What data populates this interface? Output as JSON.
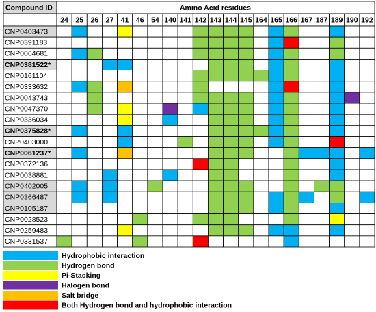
{
  "table": {
    "header": {
      "compound": "Compound ID",
      "group": "Amino Acid residues"
    },
    "residues": [
      24,
      25,
      26,
      27,
      41,
      46,
      54,
      140,
      141,
      142,
      143,
      144,
      145,
      164,
      165,
      166,
      167,
      187,
      189,
      190,
      192
    ],
    "rows": [
      {
        "id": "CNP0403473",
        "shaded": true,
        "bold": false,
        "cells": [
          null,
          "#00b0f0",
          null,
          null,
          "#ffff00",
          null,
          null,
          null,
          null,
          "#92d050",
          "#92d050",
          "#92d050",
          "#92d050",
          null,
          "#00b0f0",
          "#92d050",
          null,
          null,
          "#00b0f0",
          null,
          null
        ]
      },
      {
        "id": "CNP0391183",
        "shaded": false,
        "bold": false,
        "cells": [
          null,
          null,
          null,
          null,
          null,
          null,
          null,
          null,
          null,
          "#92d050",
          "#92d050",
          "#92d050",
          "#92d050",
          null,
          "#00b0f0",
          "#ff0000",
          null,
          null,
          "#92d050",
          null,
          null
        ]
      },
      {
        "id": "CNP0064681",
        "shaded": false,
        "bold": false,
        "cells": [
          null,
          "#00b0f0",
          "#92d050",
          null,
          null,
          null,
          null,
          null,
          null,
          "#92d050",
          "#92d050",
          "#92d050",
          "#92d050",
          null,
          "#00b0f0",
          "#92d050",
          null,
          null,
          "#92d050",
          null,
          null
        ]
      },
      {
        "id": "CNP0381522*",
        "shaded": true,
        "bold": true,
        "cells": [
          null,
          null,
          null,
          "#00b0f0",
          "#00b0f0",
          null,
          null,
          null,
          null,
          null,
          "#92d050",
          "#92d050",
          "#92d050",
          null,
          "#00b0f0",
          "#92d050",
          null,
          null,
          "#00b0f0",
          null,
          null
        ]
      },
      {
        "id": "CNP0161104",
        "shaded": false,
        "bold": false,
        "cells": [
          null,
          null,
          null,
          null,
          null,
          null,
          null,
          null,
          null,
          "#92d050",
          "#92d050",
          "#92d050",
          "#92d050",
          "#92d050",
          "#00b0f0",
          "#92d050",
          null,
          null,
          "#00b0f0",
          null,
          null
        ]
      },
      {
        "id": "CNP0333632",
        "shaded": false,
        "bold": false,
        "cells": [
          null,
          "#00b0f0",
          "#92d050",
          null,
          "#ffc000",
          null,
          null,
          null,
          null,
          "#92d050",
          null,
          null,
          null,
          null,
          "#00b0f0",
          "#ff0000",
          null,
          null,
          "#00b0f0",
          null,
          null
        ]
      },
      {
        "id": "CNP0043743",
        "shaded": false,
        "bold": false,
        "cells": [
          null,
          null,
          "#92d050",
          null,
          null,
          null,
          null,
          null,
          null,
          "#92d050",
          "#92d050",
          "#92d050",
          "#92d050",
          null,
          "#00b0f0",
          "#92d050",
          null,
          null,
          "#00b0f0",
          "#7030a0",
          null
        ]
      },
      {
        "id": "CNP0047370",
        "shaded": false,
        "bold": false,
        "cells": [
          null,
          null,
          "#92d050",
          null,
          "#ffff00",
          null,
          null,
          "#7030a0",
          null,
          "#00b0f0",
          "#92d050",
          "#92d050",
          "#92d050",
          null,
          "#00b0f0",
          "#92d050",
          null,
          null,
          "#00b0f0",
          null,
          null
        ]
      },
      {
        "id": "CNP0336034",
        "shaded": false,
        "bold": false,
        "cells": [
          null,
          null,
          null,
          null,
          "#ffff00",
          null,
          null,
          "#00b0f0",
          null,
          null,
          "#92d050",
          "#92d050",
          "#92d050",
          null,
          "#00b0f0",
          "#92d050",
          null,
          null,
          "#00b0f0",
          null,
          null
        ]
      },
      {
        "id": "CNP0375828*",
        "shaded": true,
        "bold": true,
        "cells": [
          null,
          "#00b0f0",
          null,
          null,
          "#00b0f0",
          null,
          null,
          null,
          null,
          null,
          "#92d050",
          "#92d050",
          "#92d050",
          "#92d050",
          "#00b0f0",
          "#92d050",
          null,
          null,
          "#00b0f0",
          null,
          null
        ]
      },
      {
        "id": "CNP0403000",
        "shaded": false,
        "bold": false,
        "cells": [
          null,
          null,
          null,
          null,
          "#00b0f0",
          null,
          null,
          null,
          "#92d050",
          null,
          "#92d050",
          "#92d050",
          "#92d050",
          null,
          "#00b0f0",
          "#92d050",
          null,
          null,
          "#ff0000",
          null,
          null
        ]
      },
      {
        "id": "CNP0061237*",
        "shaded": true,
        "bold": true,
        "cells": [
          null,
          "#00b0f0",
          null,
          null,
          "#ffc000",
          null,
          null,
          null,
          null,
          null,
          "#92d050",
          "#92d050",
          "#92d050",
          null,
          null,
          "#92d050",
          "#00b0f0",
          "#00b0f0",
          "#00b0f0",
          null,
          "#00b0f0"
        ]
      },
      {
        "id": "CNP0372136",
        "shaded": false,
        "bold": false,
        "cells": [
          null,
          null,
          null,
          null,
          null,
          null,
          null,
          null,
          null,
          "#ff0000",
          "#92d050",
          "#92d050",
          null,
          null,
          null,
          "#92d050",
          null,
          null,
          "#00b0f0",
          null,
          null
        ]
      },
      {
        "id": "CNP0038881",
        "shaded": false,
        "bold": false,
        "cells": [
          null,
          null,
          null,
          "#00b0f0",
          null,
          null,
          null,
          "#00b0f0",
          null,
          null,
          "#92d050",
          "#92d050",
          null,
          null,
          null,
          "#92d050",
          null,
          null,
          "#00b0f0",
          null,
          null
        ]
      },
      {
        "id": "CNP0402005",
        "shaded": true,
        "bold": false,
        "cells": [
          null,
          "#00b0f0",
          null,
          "#00b0f0",
          null,
          null,
          "#92d050",
          null,
          null,
          null,
          "#92d050",
          "#92d050",
          "#92d050",
          null,
          null,
          "#92d050",
          null,
          "#92d050",
          "#92d050",
          null,
          null
        ]
      },
      {
        "id": "CNP0366487",
        "shaded": true,
        "bold": false,
        "cells": [
          null,
          "#00b0f0",
          null,
          "#00b0f0",
          null,
          null,
          null,
          null,
          null,
          null,
          "#92d050",
          "#92d050",
          "#92d050",
          null,
          "#00b0f0",
          "#92d050",
          "#00b0f0",
          null,
          "#92d050",
          null,
          "#00b0f0"
        ]
      },
      {
        "id": "CNP0105187",
        "shaded": true,
        "bold": false,
        "cells": [
          null,
          null,
          null,
          null,
          null,
          null,
          null,
          null,
          null,
          null,
          "#92d050",
          "#92d050",
          "#92d050",
          null,
          "#00b0f0",
          "#92d050",
          null,
          null,
          "#00b0f0",
          null,
          null
        ]
      },
      {
        "id": "CNP0028523",
        "shaded": false,
        "bold": false,
        "cells": [
          null,
          null,
          null,
          null,
          null,
          "#92d050",
          null,
          null,
          null,
          "#92d050",
          "#92d050",
          "#92d050",
          null,
          null,
          null,
          "#92d050",
          null,
          null,
          "#ffff00",
          null,
          null
        ]
      },
      {
        "id": "CNP0259483",
        "shaded": false,
        "bold": false,
        "cells": [
          null,
          null,
          null,
          null,
          "#ffff00",
          null,
          null,
          null,
          null,
          null,
          "#92d050",
          "#92d050",
          "#92d050",
          null,
          "#00b0f0",
          "#00b0f0",
          null,
          null,
          "#00b0f0",
          null,
          null
        ]
      },
      {
        "id": "CNP0331537",
        "shaded": false,
        "bold": false,
        "cells": [
          "#92d050",
          null,
          null,
          null,
          null,
          "#92d050",
          null,
          null,
          null,
          "#ff0000",
          null,
          null,
          null,
          null,
          null,
          "#00b0f0",
          null,
          null,
          null,
          null,
          null
        ]
      }
    ]
  },
  "legend": [
    {
      "color": "#00b0f0",
      "label": "Hydrophobic interaction"
    },
    {
      "color": "#92d050",
      "label": "Hydrogen bond"
    },
    {
      "color": "#ffff00",
      "label": "Pi-Stacking"
    },
    {
      "color": "#7030a0",
      "label": "Halogen bond"
    },
    {
      "color": "#ffc000",
      "label": "Salt bridge"
    },
    {
      "color": "#ff0000",
      "label": "Both Hydrogen bond and hydrophobic interaction"
    }
  ]
}
